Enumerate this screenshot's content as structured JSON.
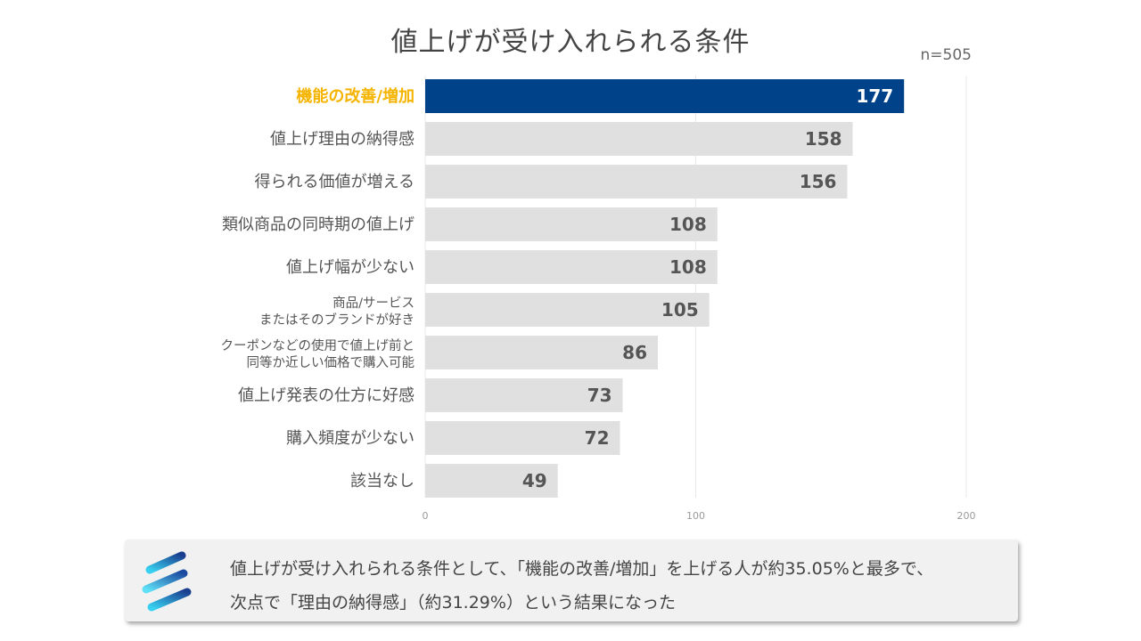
{
  "title": "値上げが受け入れられる条件",
  "sample_size": "n=505",
  "chart_data": {
    "type": "bar",
    "orientation": "horizontal",
    "categories": [
      [
        "機能の改善/増加"
      ],
      [
        "値上げ理由の納得感"
      ],
      [
        "得られる価値が増える"
      ],
      [
        "類似商品の同時期の値上げ"
      ],
      [
        "値上げ幅が少ない"
      ],
      [
        "商品/サービス",
        "またはそのブランドが好き"
      ],
      [
        "クーポンなどの使用で値上げ前と",
        "同等か近しい価格で購入可能"
      ],
      [
        "値上げ発表の仕方に好感"
      ],
      [
        "購入頻度が少ない"
      ],
      [
        "該当なし"
      ]
    ],
    "values": [
      177,
      158,
      156,
      108,
      108,
      105,
      86,
      73,
      72,
      49
    ],
    "highlight_index": 0,
    "xlim": [
      0,
      200
    ],
    "xticks": [
      0,
      100,
      200
    ],
    "grid": true,
    "colors": {
      "highlight_bar": "#004289",
      "bar": "#e0e0e0",
      "highlight_label": "#f5b400"
    }
  },
  "callout": {
    "line1": "値上げが受け入れられる条件として、「機能の改善/増加」を上げる人が約35.05%と最多で、",
    "line2": "次点で「理由の納得感」（約31.29%）という結果になった",
    "icon": "stripes-logo-icon"
  }
}
